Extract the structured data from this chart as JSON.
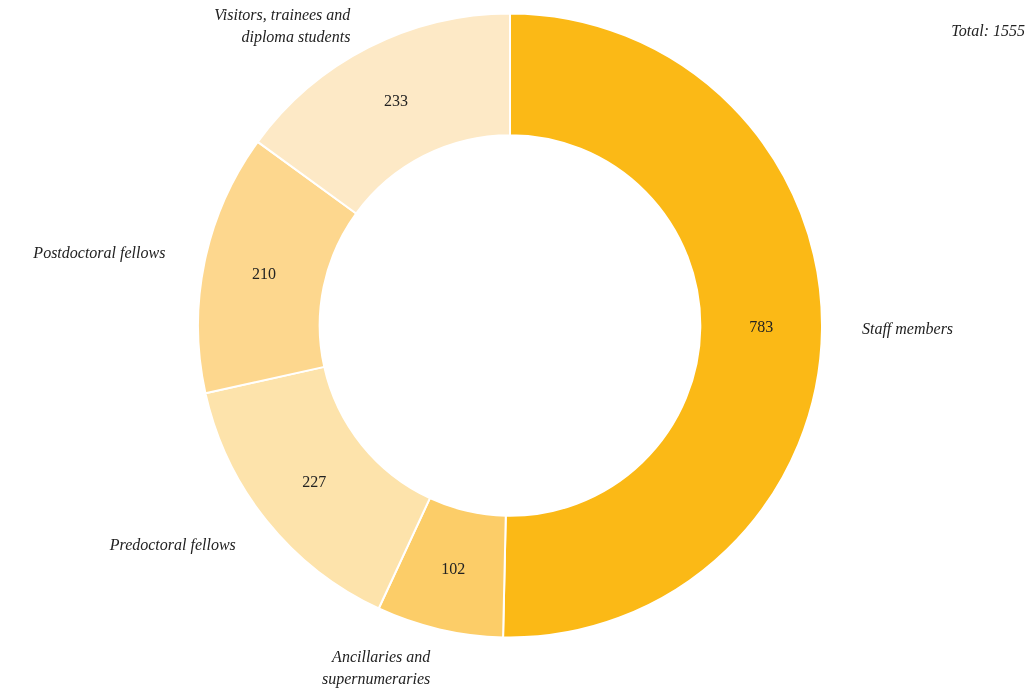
{
  "chart_data": {
    "type": "donut",
    "categories": [
      "Staff members",
      "Ancillaries and supernumeraries",
      "Predoctoral fellows",
      "Postdoctoral fellows",
      "Visitors, trainees and diploma students"
    ],
    "values": [
      783,
      102,
      227,
      210,
      233
    ],
    "colors": [
      "#fbb916",
      "#fccd68",
      "#fde3ab",
      "#fdd78e",
      "#fde9c6"
    ],
    "data_labels": true,
    "legend": false,
    "annotations": [
      "Total: 1555"
    ]
  }
}
